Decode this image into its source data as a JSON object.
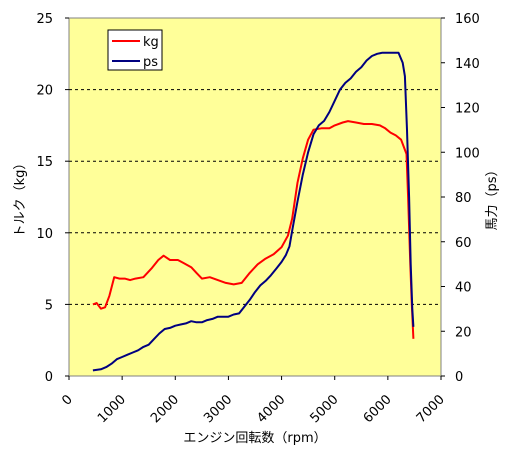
{
  "chart_data": {
    "type": "line",
    "xlabel": "エンジン回転数（rpm）",
    "ylabel_left": "トルク（kg）",
    "ylabel_right": "馬力（ps）",
    "x_ticks": [
      "0",
      "1000",
      "2000",
      "3000",
      "4000",
      "5000",
      "6000",
      "7000"
    ],
    "y_left_ticks": [
      "0",
      "5",
      "10",
      "15",
      "20",
      "25"
    ],
    "y_right_ticks": [
      "0",
      "20",
      "40",
      "60",
      "80",
      "100",
      "120",
      "140",
      "160"
    ],
    "xlim": [
      0,
      7000
    ],
    "ylim_left": [
      0,
      25
    ],
    "ylim_right": [
      0,
      160
    ],
    "plot_background": "#FFFF99",
    "gridlines_left_y": [
      5,
      10,
      15,
      20
    ],
    "legend_position": "top-left",
    "series": [
      {
        "name": "kg",
        "axis": "left",
        "color": "#FF0000",
        "points": [
          [
            450,
            5.0
          ],
          [
            520,
            5.1
          ],
          [
            600,
            4.7
          ],
          [
            680,
            4.8
          ],
          [
            760,
            5.6
          ],
          [
            850,
            6.9
          ],
          [
            950,
            6.8
          ],
          [
            1050,
            6.8
          ],
          [
            1150,
            6.7
          ],
          [
            1250,
            6.8
          ],
          [
            1400,
            6.9
          ],
          [
            1550,
            7.5
          ],
          [
            1680,
            8.1
          ],
          [
            1780,
            8.4
          ],
          [
            1900,
            8.1
          ],
          [
            2050,
            8.1
          ],
          [
            2150,
            7.9
          ],
          [
            2300,
            7.6
          ],
          [
            2400,
            7.2
          ],
          [
            2500,
            6.8
          ],
          [
            2650,
            6.9
          ],
          [
            2800,
            6.7
          ],
          [
            2950,
            6.5
          ],
          [
            3100,
            6.4
          ],
          [
            3250,
            6.5
          ],
          [
            3400,
            7.2
          ],
          [
            3550,
            7.8
          ],
          [
            3700,
            8.2
          ],
          [
            3850,
            8.5
          ],
          [
            4000,
            9.0
          ],
          [
            4120,
            9.8
          ],
          [
            4200,
            11.0
          ],
          [
            4300,
            13.5
          ],
          [
            4400,
            15.2
          ],
          [
            4500,
            16.5
          ],
          [
            4600,
            17.2
          ],
          [
            4750,
            17.3
          ],
          [
            4900,
            17.3
          ],
          [
            5000,
            17.5
          ],
          [
            5150,
            17.7
          ],
          [
            5250,
            17.8
          ],
          [
            5400,
            17.7
          ],
          [
            5550,
            17.6
          ],
          [
            5700,
            17.6
          ],
          [
            5850,
            17.5
          ],
          [
            5950,
            17.3
          ],
          [
            6050,
            17.0
          ],
          [
            6150,
            16.8
          ],
          [
            6250,
            16.5
          ],
          [
            6300,
            16.0
          ],
          [
            6350,
            15.5
          ],
          [
            6380,
            12.5
          ],
          [
            6420,
            8.0
          ],
          [
            6450,
            5.0
          ],
          [
            6480,
            2.6
          ]
        ]
      },
      {
        "name": "ps",
        "axis": "right",
        "color": "#000080",
        "points": [
          [
            450,
            2.5
          ],
          [
            600,
            3.0
          ],
          [
            700,
            4.0
          ],
          [
            800,
            5.5
          ],
          [
            900,
            7.5
          ],
          [
            1000,
            8.5
          ],
          [
            1100,
            9.5
          ],
          [
            1200,
            10.5
          ],
          [
            1300,
            11.5
          ],
          [
            1400,
            13.0
          ],
          [
            1500,
            14.0
          ],
          [
            1600,
            16.5
          ],
          [
            1700,
            19.0
          ],
          [
            1800,
            21.0
          ],
          [
            1900,
            21.5
          ],
          [
            2000,
            22.5
          ],
          [
            2100,
            23.0
          ],
          [
            2200,
            23.5
          ],
          [
            2300,
            24.5
          ],
          [
            2400,
            24.0
          ],
          [
            2500,
            24.0
          ],
          [
            2600,
            25.0
          ],
          [
            2700,
            25.5
          ],
          [
            2800,
            26.5
          ],
          [
            2900,
            26.5
          ],
          [
            3000,
            26.5
          ],
          [
            3100,
            27.5
          ],
          [
            3200,
            28.0
          ],
          [
            3300,
            31.0
          ],
          [
            3400,
            34.0
          ],
          [
            3500,
            37.5
          ],
          [
            3600,
            40.5
          ],
          [
            3700,
            42.5
          ],
          [
            3800,
            45.0
          ],
          [
            3900,
            48.0
          ],
          [
            4000,
            51.0
          ],
          [
            4080,
            54.0
          ],
          [
            4150,
            58.0
          ],
          [
            4200,
            65.0
          ],
          [
            4300,
            78.0
          ],
          [
            4400,
            90.0
          ],
          [
            4500,
            100.0
          ],
          [
            4600,
            108.0
          ],
          [
            4700,
            112.0
          ],
          [
            4800,
            114.0
          ],
          [
            4900,
            118.0
          ],
          [
            5000,
            123.0
          ],
          [
            5100,
            128.0
          ],
          [
            5200,
            131.0
          ],
          [
            5300,
            133.0
          ],
          [
            5400,
            136.0
          ],
          [
            5500,
            138.0
          ],
          [
            5600,
            141.0
          ],
          [
            5700,
            143.0
          ],
          [
            5800,
            144.0
          ],
          [
            5900,
            144.5
          ],
          [
            6000,
            144.5
          ],
          [
            6100,
            144.5
          ],
          [
            6200,
            144.5
          ],
          [
            6280,
            140.0
          ],
          [
            6320,
            134.0
          ],
          [
            6360,
            110.0
          ],
          [
            6400,
            80.0
          ],
          [
            6430,
            50.0
          ],
          [
            6460,
            30.0
          ],
          [
            6480,
            22.0
          ]
        ]
      }
    ]
  }
}
